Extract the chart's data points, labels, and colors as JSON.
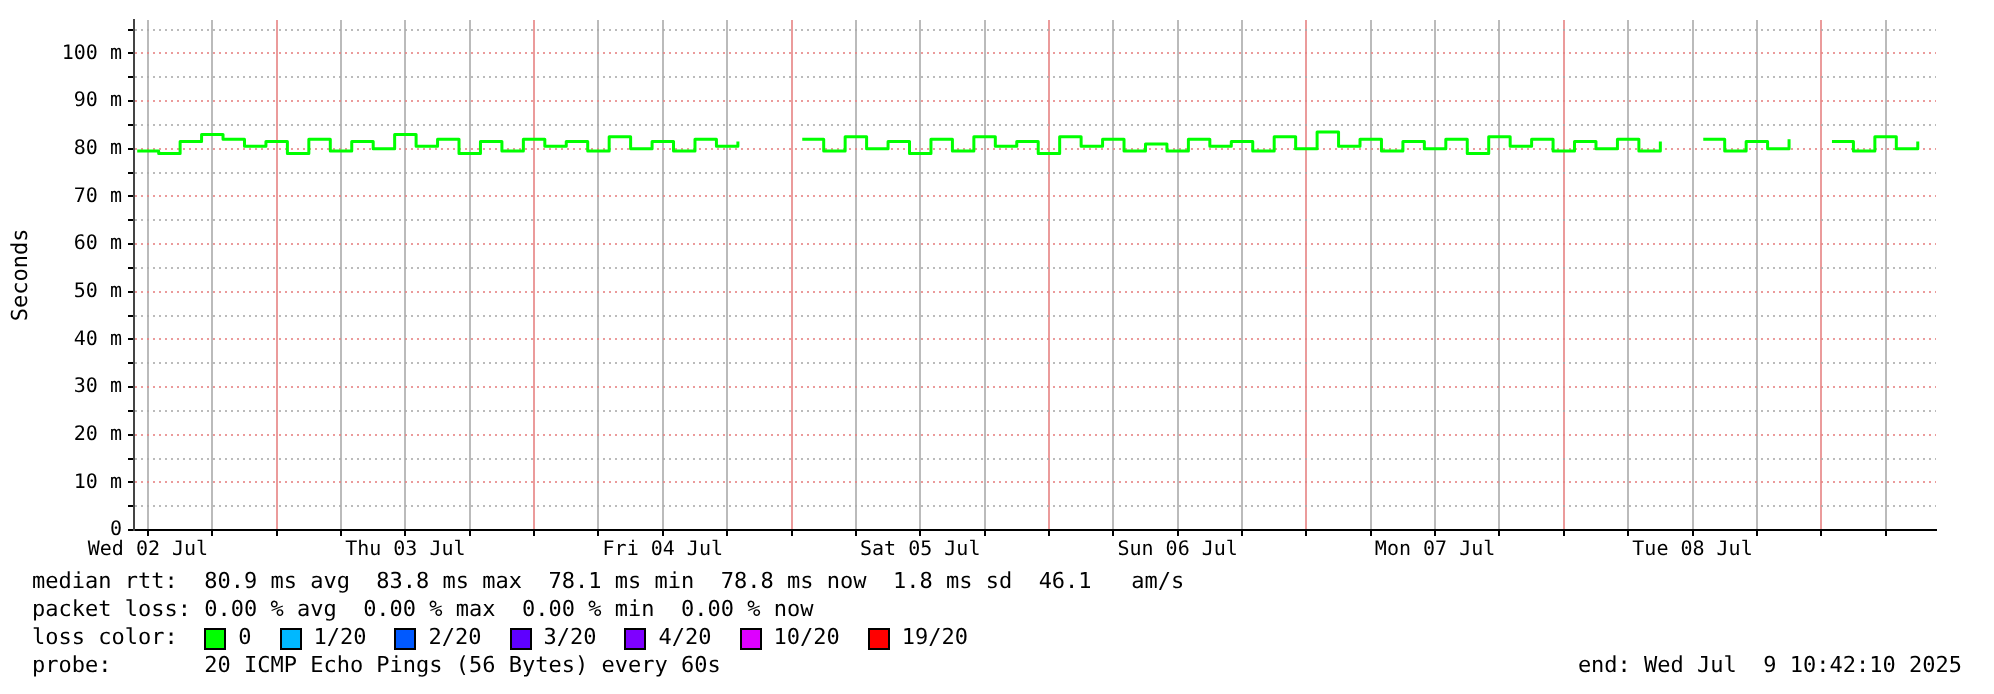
{
  "chart_data": {
    "type": "step",
    "ylabel": "Seconds",
    "legend": "bottom",
    "legend_title": "loss color:",
    "grid": true,
    "x": [
      "2025-07-02T11:00",
      "2025-07-02T13:00",
      "2025-07-02T15:00",
      "2025-07-02T17:00",
      "2025-07-02T19:00",
      "2025-07-02T21:00",
      "2025-07-02T23:00",
      "2025-07-03T01:00",
      "2025-07-03T03:00",
      "2025-07-03T05:00",
      "2025-07-03T07:00",
      "2025-07-03T09:00",
      "2025-07-03T11:00",
      "2025-07-03T13:00",
      "2025-07-03T15:00",
      "2025-07-03T17:00",
      "2025-07-03T19:00",
      "2025-07-03T21:00",
      "2025-07-03T23:00",
      "2025-07-04T01:00",
      "2025-07-04T03:00",
      "2025-07-04T05:00",
      "2025-07-04T07:00",
      "2025-07-04T09:00",
      "2025-07-04T11:00",
      "2025-07-04T13:00",
      "2025-07-04T15:00",
      "2025-07-04T17:00",
      "2025-07-04T19:00",
      "2025-07-04T21:00",
      "2025-07-04T23:00",
      "2025-07-05T01:00",
      "2025-07-05T03:00",
      "2025-07-05T05:00",
      "2025-07-05T07:00",
      "2025-07-05T09:00",
      "2025-07-05T11:00",
      "2025-07-05T13:00",
      "2025-07-05T15:00",
      "2025-07-05T17:00",
      "2025-07-05T19:00",
      "2025-07-05T21:00",
      "2025-07-05T23:00",
      "2025-07-06T01:00",
      "2025-07-06T03:00",
      "2025-07-06T05:00",
      "2025-07-06T07:00",
      "2025-07-06T09:00",
      "2025-07-06T11:00",
      "2025-07-06T13:00",
      "2025-07-06T15:00",
      "2025-07-06T17:00",
      "2025-07-06T19:00",
      "2025-07-06T21:00",
      "2025-07-06T23:00",
      "2025-07-07T01:00",
      "2025-07-07T03:00",
      "2025-07-07T05:00",
      "2025-07-07T07:00",
      "2025-07-07T09:00",
      "2025-07-07T11:00",
      "2025-07-07T13:00",
      "2025-07-07T15:00",
      "2025-07-07T17:00",
      "2025-07-07T19:00",
      "2025-07-07T21:00",
      "2025-07-07T23:00",
      "2025-07-08T01:00",
      "2025-07-08T03:00",
      "2025-07-08T05:00",
      "2025-07-08T07:00",
      "2025-07-08T09:00",
      "2025-07-08T11:00",
      "2025-07-08T13:00",
      "2025-07-08T15:00",
      "2025-07-08T17:00",
      "2025-07-08T19:00",
      "2025-07-08T21:00",
      "2025-07-08T23:00",
      "2025-07-09T01:00",
      "2025-07-09T03:00",
      "2025-07-09T05:00",
      "2025-07-09T07:00",
      "2025-07-09T09:00"
    ],
    "xlim": [
      "2025-07-02T10:42",
      "2025-07-09T10:42"
    ],
    "xticks": [
      {
        "value": "2025-07-02T12:00",
        "label": "Wed 02 Jul"
      },
      {
        "value": "2025-07-02T18:00",
        "label": null
      },
      {
        "value": "2025-07-03T00:00",
        "label": null
      },
      {
        "value": "2025-07-03T06:00",
        "label": null
      },
      {
        "value": "2025-07-03T12:00",
        "label": "Thu 03 Jul"
      },
      {
        "value": "2025-07-03T18:00",
        "label": null
      },
      {
        "value": "2025-07-04T00:00",
        "label": null
      },
      {
        "value": "2025-07-04T06:00",
        "label": null
      },
      {
        "value": "2025-07-04T12:00",
        "label": "Fri 04 Jul"
      },
      {
        "value": "2025-07-04T18:00",
        "label": null
      },
      {
        "value": "2025-07-05T00:00",
        "label": null
      },
      {
        "value": "2025-07-05T06:00",
        "label": null
      },
      {
        "value": "2025-07-05T12:00",
        "label": "Sat 05 Jul"
      },
      {
        "value": "2025-07-05T18:00",
        "label": null
      },
      {
        "value": "2025-07-06T00:00",
        "label": null
      },
      {
        "value": "2025-07-06T06:00",
        "label": null
      },
      {
        "value": "2025-07-06T12:00",
        "label": "Sun 06 Jul"
      },
      {
        "value": "2025-07-06T18:00",
        "label": null
      },
      {
        "value": "2025-07-07T00:00",
        "label": null
      },
      {
        "value": "2025-07-07T06:00",
        "label": null
      },
      {
        "value": "2025-07-07T12:00",
        "label": "Mon 07 Jul"
      },
      {
        "value": "2025-07-07T18:00",
        "label": null
      },
      {
        "value": "2025-07-08T00:00",
        "label": null
      },
      {
        "value": "2025-07-08T06:00",
        "label": null
      },
      {
        "value": "2025-07-08T12:00",
        "label": "Tue 08 Jul"
      },
      {
        "value": "2025-07-08T18:00",
        "label": null
      },
      {
        "value": "2025-07-09T00:00",
        "label": null
      },
      {
        "value": "2025-07-09T06:00",
        "label": null
      }
    ],
    "ylim": [
      0,
      107
    ],
    "yticks": [
      0,
      {
        "value": 5,
        "label": null
      },
      {
        "value": 10,
        "label": "10 m"
      },
      {
        "value": 15,
        "label": null
      },
      {
        "value": 20,
        "label": "20 m"
      },
      {
        "value": 25,
        "label": null
      },
      {
        "value": 30,
        "label": "30 m"
      },
      {
        "value": 35,
        "label": null
      },
      {
        "value": 40,
        "label": "40 m"
      },
      {
        "value": 45,
        "label": null
      },
      {
        "value": 50,
        "label": "50 m"
      },
      {
        "value": 55,
        "label": null
      },
      {
        "value": 60,
        "label": "60 m"
      },
      {
        "value": 65,
        "label": null
      },
      {
        "value": 70,
        "label": "70 m"
      },
      {
        "value": 75,
        "label": null
      },
      {
        "value": 80,
        "label": "80 m"
      },
      {
        "value": 85,
        "label": null
      },
      {
        "value": 90,
        "label": "90 m"
      },
      {
        "value": 95,
        "label": null
      },
      {
        "value": 100,
        "label": "100 m"
      },
      {
        "value": 105,
        "label": null
      }
    ],
    "series": [
      {
        "name": "0",
        "color": "#00ff00",
        "values": [
          79.5,
          79,
          81.5,
          83,
          82,
          80.5,
          81.5,
          79,
          82,
          79.5,
          81.5,
          80,
          83,
          80.5,
          82,
          79,
          81.5,
          79.5,
          82,
          80.5,
          81.5,
          79.5,
          82.5,
          80,
          81.5,
          79.5,
          82,
          80.5,
          81.5,
          null,
          null,
          82,
          79.5,
          82.5,
          80,
          81.5,
          79,
          82,
          79.5,
          82.5,
          80.5,
          81.5,
          79,
          82.5,
          80.5,
          82,
          79.5,
          81,
          79.5,
          82,
          80.5,
          81.5,
          79.5,
          82.5,
          80,
          83.5,
          80.5,
          82,
          79.5,
          81.5,
          80,
          82,
          79,
          82.5,
          80.5,
          82,
          79.5,
          81.5,
          80,
          82,
          79.5,
          81.5,
          null,
          82,
          79.5,
          81.5,
          80,
          82,
          null,
          81.5,
          79.5,
          82.5,
          80,
          81.5
        ]
      },
      {
        "name": "1/20",
        "color": "#00b8ff",
        "values": [
          null,
          null,
          null,
          null,
          null,
          null,
          null,
          null,
          null,
          null,
          null,
          null,
          null,
          null,
          null,
          null,
          null,
          null,
          null,
          null,
          null,
          null,
          null,
          null,
          null,
          null,
          null,
          null,
          null,
          null,
          null,
          null,
          null,
          null,
          null,
          null,
          null,
          null,
          null,
          null,
          null,
          null,
          null,
          null,
          null,
          null,
          null,
          null,
          null,
          null,
          null,
          null,
          null,
          null,
          null,
          null,
          null,
          null,
          null,
          null,
          null,
          null,
          null,
          null,
          null,
          null,
          null,
          null,
          null,
          null,
          null,
          null,
          null,
          null,
          null,
          null,
          null,
          null,
          null,
          null,
          null,
          null,
          null,
          null
        ]
      },
      {
        "name": "2/20",
        "color": "#0059ff",
        "values": [
          null,
          null,
          null,
          null,
          null,
          null,
          null,
          null,
          null,
          null,
          null,
          null,
          null,
          null,
          null,
          null,
          null,
          null,
          null,
          null,
          null,
          null,
          null,
          null,
          null,
          null,
          null,
          null,
          null,
          null,
          null,
          null,
          null,
          null,
          null,
          null,
          null,
          null,
          null,
          null,
          null,
          null,
          null,
          null,
          null,
          null,
          null,
          null,
          null,
          null,
          null,
          null,
          null,
          null,
          null,
          null,
          null,
          null,
          null,
          null,
          null,
          null,
          null,
          null,
          null,
          null,
          null,
          null,
          null,
          null,
          null,
          null,
          null,
          null,
          null,
          null,
          null,
          null,
          null,
          null,
          null,
          null,
          null,
          null
        ]
      },
      {
        "name": "3/20",
        "color": "#5e00ff",
        "values": [
          null,
          null,
          null,
          null,
          null,
          null,
          null,
          null,
          null,
          null,
          null,
          null,
          null,
          null,
          null,
          null,
          null,
          null,
          null,
          null,
          null,
          null,
          null,
          null,
          null,
          null,
          null,
          null,
          null,
          null,
          null,
          null,
          null,
          null,
          null,
          null,
          null,
          null,
          null,
          null,
          null,
          null,
          null,
          null,
          null,
          null,
          null,
          null,
          null,
          null,
          null,
          null,
          null,
          null,
          null,
          null,
          null,
          null,
          null,
          null,
          null,
          null,
          null,
          null,
          null,
          null,
          null,
          null,
          null,
          null,
          null,
          null,
          null,
          null,
          null,
          null,
          null,
          null,
          null,
          null,
          null,
          null,
          null,
          null
        ]
      },
      {
        "name": "4/20",
        "color": "#7e00ff",
        "values": [
          null,
          null,
          null,
          null,
          null,
          null,
          null,
          null,
          null,
          null,
          null,
          null,
          null,
          null,
          null,
          null,
          null,
          null,
          null,
          null,
          null,
          null,
          null,
          null,
          null,
          null,
          null,
          null,
          null,
          null,
          null,
          null,
          null,
          null,
          null,
          null,
          null,
          null,
          null,
          null,
          null,
          null,
          null,
          null,
          null,
          null,
          null,
          null,
          null,
          null,
          null,
          null,
          null,
          null,
          null,
          null,
          null,
          null,
          null,
          null,
          null,
          null,
          null,
          null,
          null,
          null,
          null,
          null,
          null,
          null,
          null,
          null,
          null,
          null,
          null,
          null,
          null,
          null,
          null,
          null,
          null,
          null,
          null,
          null
        ]
      },
      {
        "name": "10/20",
        "color": "#dd00ff",
        "values": [
          null,
          null,
          null,
          null,
          null,
          null,
          null,
          null,
          null,
          null,
          null,
          null,
          null,
          null,
          null,
          null,
          null,
          null,
          null,
          null,
          null,
          null,
          null,
          null,
          null,
          null,
          null,
          null,
          null,
          null,
          null,
          null,
          null,
          null,
          null,
          null,
          null,
          null,
          null,
          null,
          null,
          null,
          null,
          null,
          null,
          null,
          null,
          null,
          null,
          null,
          null,
          null,
          null,
          null,
          null,
          null,
          null,
          null,
          null,
          null,
          null,
          null,
          null,
          null,
          null,
          null,
          null,
          null,
          null,
          null,
          null,
          null,
          null,
          null,
          null,
          null,
          null,
          null,
          null,
          null,
          null,
          null,
          null,
          null
        ]
      },
      {
        "name": "19/20",
        "color": "#ff0000",
        "values": [
          null,
          null,
          null,
          null,
          null,
          null,
          null,
          null,
          null,
          null,
          null,
          null,
          null,
          null,
          null,
          null,
          null,
          null,
          null,
          null,
          null,
          null,
          null,
          null,
          null,
          null,
          null,
          null,
          null,
          null,
          null,
          null,
          null,
          null,
          null,
          null,
          null,
          null,
          null,
          null,
          null,
          null,
          null,
          null,
          null,
          null,
          null,
          null,
          null,
          null,
          null,
          null,
          null,
          null,
          null,
          null,
          null,
          null,
          null,
          null,
          null,
          null,
          null,
          null,
          null,
          null,
          null,
          null,
          null,
          null,
          null,
          null,
          null,
          null,
          null,
          null,
          null,
          null,
          null,
          null,
          null,
          null,
          null,
          null
        ]
      }
    ],
    "annotations": [
      "median rtt:  80.9 ms avg  83.8 ms max  78.1 ms min  78.8 ms now  1.8 ms sd  46.1   am/s",
      "packet loss: 0.00 % avg  0.00 % max  0.00 % min  0.00 % now",
      "probe:       20 ICMP Echo Pings (56 Bytes) every 60s",
      "end: Wed Jul  9 10:42:10 2025"
    ]
  }
}
